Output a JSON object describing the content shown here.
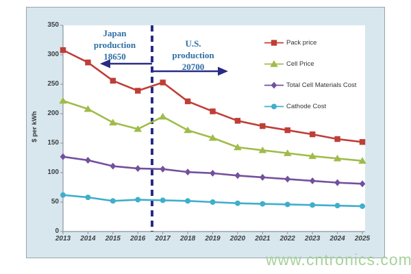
{
  "watermark": {
    "text": "www.cntronics.com",
    "color": "#a5d29b"
  },
  "annotations": {
    "japan": {
      "lines": [
        "Japan",
        "production",
        "18650"
      ]
    },
    "us": {
      "lines": [
        "U.S.",
        "production",
        "20700"
      ]
    },
    "divider_position": "between 2016 and 2017",
    "navy": "#282c85",
    "text_color": "#2d6fa3"
  },
  "chart_data": {
    "type": "line",
    "title": "",
    "xlabel": "",
    "ylabel": "$ per kWh",
    "ylim": [
      0,
      350
    ],
    "yticks": [
      0,
      50,
      100,
      150,
      200,
      250,
      300,
      350
    ],
    "grid": false,
    "legend_position": "top-right-inside",
    "categories": [
      "2013",
      "2014",
      "2015",
      "2016",
      "2017",
      "2018",
      "2019",
      "2020",
      "2021",
      "2022",
      "2023",
      "2024",
      "2025"
    ],
    "series": [
      {
        "name": "Pack price",
        "color": "#bf3e36",
        "marker": "square",
        "values": [
          308,
          287,
          256,
          239,
          253,
          221,
          204,
          188,
          179,
          172,
          165,
          157,
          152
        ]
      },
      {
        "name": "Cell Price",
        "color": "#9fbc49",
        "marker": "triangle",
        "values": [
          222,
          208,
          185,
          174,
          195,
          172,
          159,
          143,
          138,
          133,
          128,
          124,
          120
        ]
      },
      {
        "name": "Total Cell Materials Cost",
        "color": "#73509d",
        "marker": "diamond",
        "values": [
          127,
          121,
          111,
          107,
          106,
          101,
          99,
          95,
          92,
          89,
          86,
          83,
          81
        ]
      },
      {
        "name": "Cathode Cost",
        "color": "#3faecb",
        "marker": "circle",
        "values": [
          62,
          58,
          52,
          54,
          53,
          52,
          50,
          48,
          47,
          46,
          45,
          44,
          43
        ]
      }
    ]
  }
}
